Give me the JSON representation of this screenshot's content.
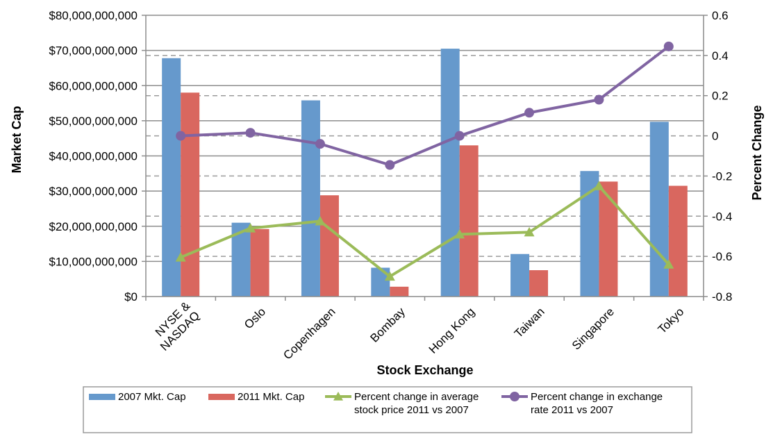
{
  "chart_data": {
    "type": "bar",
    "categories": [
      "NYSE & NASDAQ",
      "Oslo",
      "Copenhagen",
      "Bombay",
      "Hong Kong",
      "Taiwan",
      "Singapore",
      "Tokyo"
    ],
    "category_lines": [
      [
        "NYSE &",
        "NASDAQ"
      ],
      [
        "Oslo"
      ],
      [
        "Copenhagen"
      ],
      [
        "Bombay"
      ],
      [
        "Hong Kong"
      ],
      [
        "Taiwan"
      ],
      [
        "Singapore"
      ],
      [
        "Tokyo"
      ]
    ],
    "series": [
      {
        "name": "2007 Mkt. Cap",
        "type": "bar",
        "axis": "left",
        "color": "#6699CC",
        "values": [
          67800000000,
          21000000000,
          55800000000,
          8200000000,
          70500000000,
          12100000000,
          35700000000,
          49700000000
        ]
      },
      {
        "name": "2011 Mkt. Cap",
        "type": "bar",
        "axis": "left",
        "color": "#D9675F",
        "values": [
          58000000000,
          19200000000,
          28800000000,
          2800000000,
          43000000000,
          7500000000,
          32700000000,
          31500000000
        ]
      },
      {
        "name": "Percent change in average stock price 2011 vs 2007",
        "type": "line",
        "axis": "right",
        "color": "#9BBB59",
        "marker": "triangle",
        "values": [
          -0.605,
          -0.46,
          -0.425,
          -0.7,
          -0.49,
          -0.48,
          -0.25,
          -0.64
        ]
      },
      {
        "name": "Percent change in exchange rate 2011 vs 2007",
        "type": "line",
        "axis": "right",
        "color": "#8064A2",
        "marker": "circle",
        "values": [
          0.0,
          0.015,
          -0.04,
          -0.145,
          0.0,
          0.115,
          0.18,
          0.445
        ]
      }
    ],
    "ylabel": "Market Cap",
    "y2label": "Percent Change",
    "xlabel": "Stock Exchange",
    "ylim": [
      0,
      80000000000
    ],
    "y2lim": [
      -0.8,
      0.6
    ],
    "yticks": [
      "$0",
      "$10,000,000,000",
      "$20,000,000,000",
      "$30,000,000,000",
      "$40,000,000,000",
      "$50,000,000,000",
      "$60,000,000,000",
      "$70,000,000,000",
      "$80,000,000,000"
    ],
    "y2ticks": [
      "-0.8",
      "-0.6",
      "-0.4",
      "-0.2",
      "0",
      "0.2",
      "0.4",
      "0.6"
    ],
    "grid_left": "solid",
    "grid_right": "dashed",
    "legend_position": "bottom",
    "legend": [
      {
        "lines": [
          "2007 Mkt. Cap"
        ]
      },
      {
        "lines": [
          "2011 Mkt. Cap"
        ]
      },
      {
        "lines": [
          "Percent change in average",
          "stock price 2011 vs 2007"
        ]
      },
      {
        "lines": [
          "Percent change in exchange",
          "rate 2011 vs 2007"
        ]
      }
    ]
  }
}
